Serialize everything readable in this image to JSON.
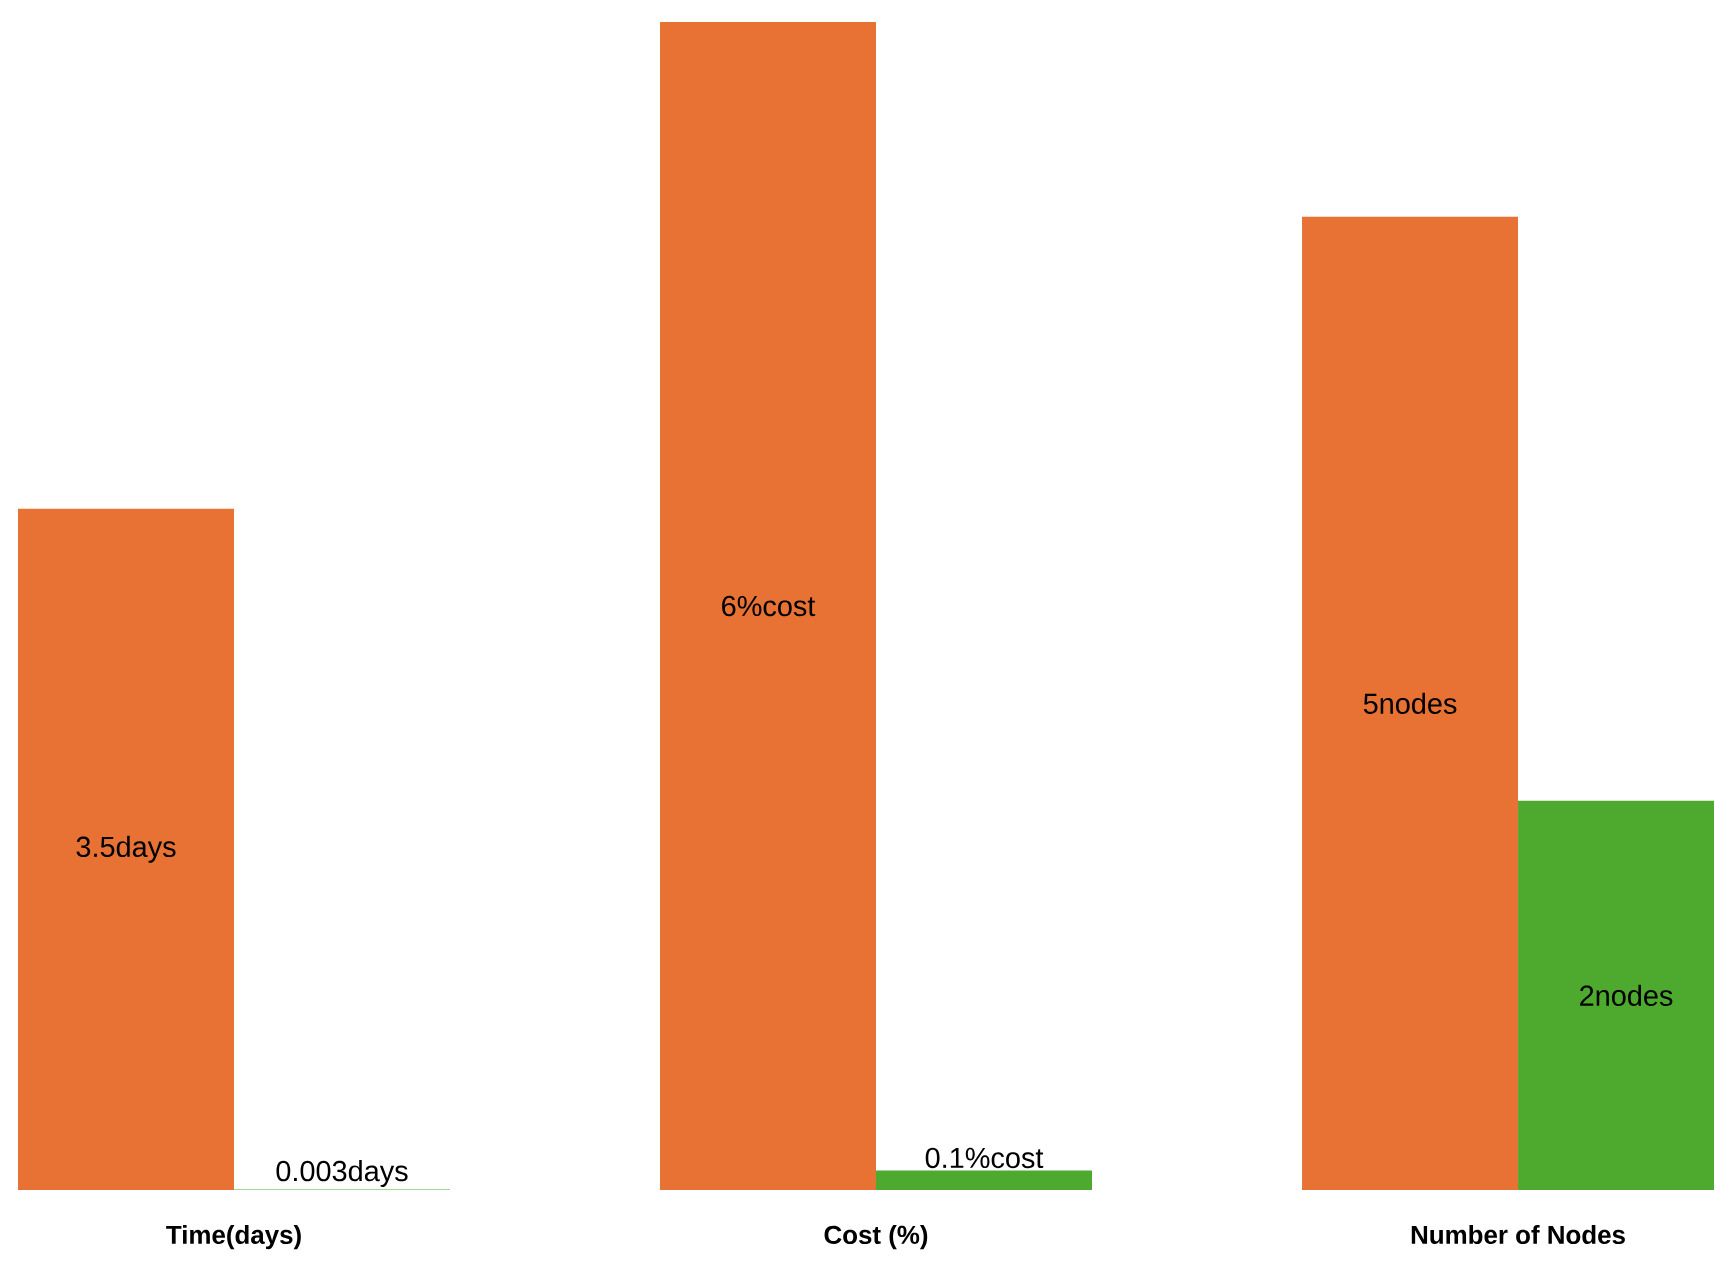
{
  "chart_data": {
    "type": "bar",
    "categories": [
      "Time(days)",
      "Cost (%)",
      "Number of Nodes"
    ],
    "series": [
      {
        "color": "#e87234",
        "values": [
          3.5,
          6,
          5
        ],
        "value_labels": [
          "3.5days",
          "6%cost",
          "5nodes"
        ]
      },
      {
        "color": "#4eaa2f",
        "values": [
          0.003,
          0.1,
          2
        ],
        "value_labels": [
          "0.003days",
          "0.1%cost",
          "2nodes"
        ]
      }
    ]
  }
}
